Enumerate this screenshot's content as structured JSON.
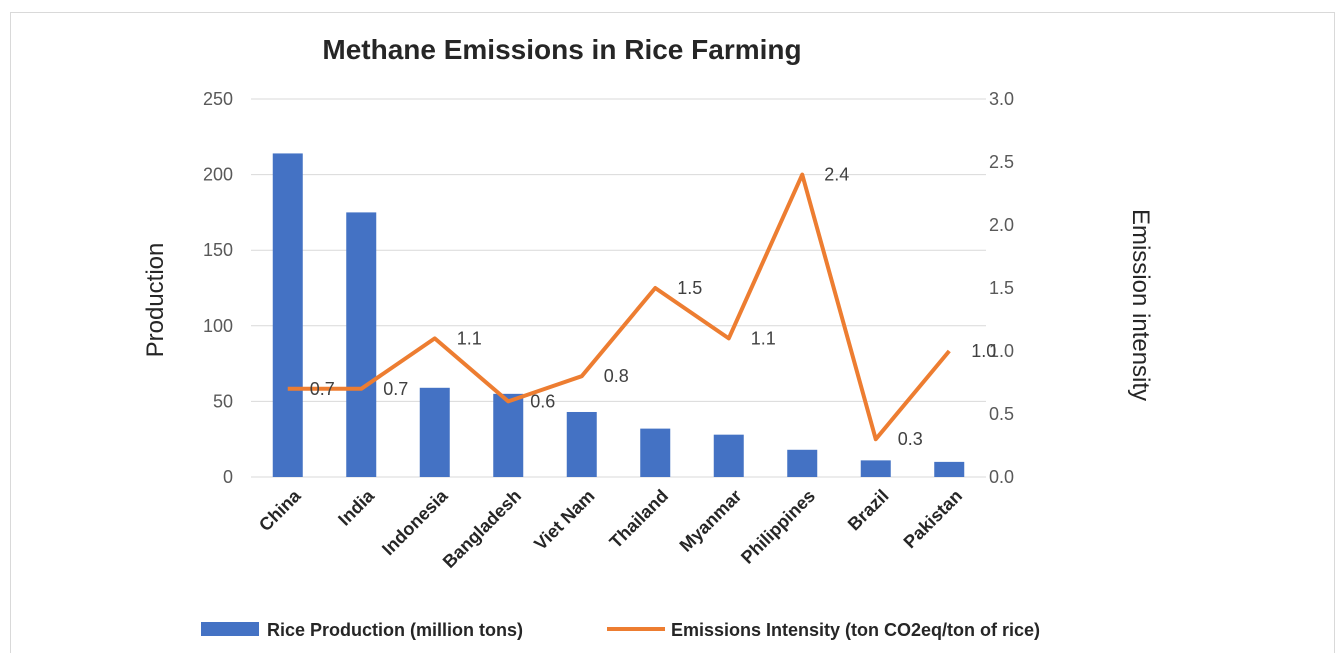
{
  "chart_data": {
    "type": "bar",
    "title": "Methane Emissions in Rice Farming",
    "categories": [
      "China",
      "India",
      "Indonesia",
      "Bangladesh",
      "Viet Nam",
      "Thailand",
      "Myanmar",
      "Philippines",
      "Brazil",
      "Pakistan"
    ],
    "series": [
      {
        "name": "Rice Production (million tons)",
        "type": "bar",
        "axis": "left",
        "color": "#4472C4",
        "values": [
          214,
          175,
          59,
          55,
          43,
          32,
          28,
          18,
          11,
          10
        ]
      },
      {
        "name": "Emissions Intensity (ton CO2eq/ton of rice)",
        "type": "line",
        "axis": "right",
        "color": "#ED7D31",
        "values": [
          0.7,
          0.7,
          1.1,
          0.6,
          0.8,
          1.5,
          1.1,
          2.4,
          0.3,
          1.0
        ],
        "data_labels": [
          "0.7",
          "0.7",
          "1.1",
          "0.6",
          "0.8",
          "1.5",
          "1.1",
          "2.4",
          "0.3",
          "1.0"
        ]
      }
    ],
    "ylabel": "Production",
    "ylim": [
      0,
      250
    ],
    "yticks": [
      "0",
      "50",
      "100",
      "150",
      "200",
      "250"
    ],
    "y2label": "Emission intensity",
    "y2lim": [
      0,
      3
    ],
    "y2ticks": [
      "0.0",
      "0.5",
      "1.0",
      "1.5",
      "2.0",
      "2.5",
      "3.0"
    ],
    "grid": true,
    "legend_position": "bottom"
  }
}
